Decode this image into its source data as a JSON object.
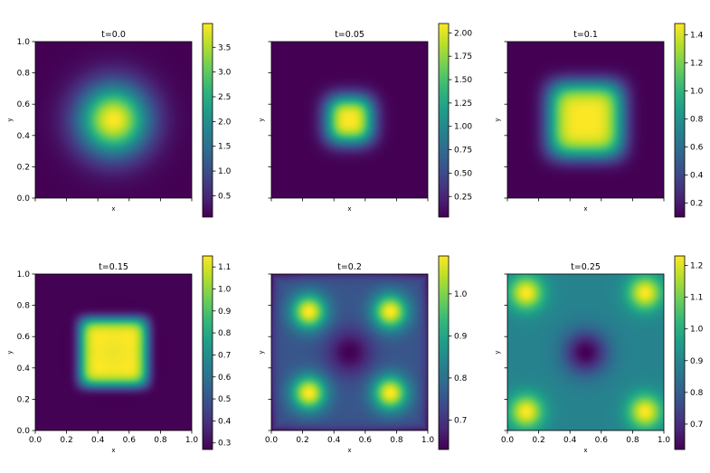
{
  "chart_data": [
    {
      "type": "heatmap",
      "title": "t=0.0",
      "xlabel": "x",
      "ylabel": "y",
      "xlim": [
        0,
        1
      ],
      "ylim": [
        0,
        1
      ],
      "colormap": "viridis",
      "clim": [
        0.07,
        3.98
      ],
      "x_ticks": [
        "",
        "",
        "",
        "",
        "",
        ""
      ],
      "y_ticks": [
        "0.0",
        "0.2",
        "0.4",
        "0.6",
        "0.8",
        "1.0"
      ],
      "colorbar_ticks": [
        "0.5",
        "1.0",
        "1.5",
        "2.0",
        "2.5",
        "3.0",
        "3.5"
      ],
      "colorbar_values": [
        0.5,
        1.0,
        1.5,
        2.0,
        2.5,
        3.0,
        3.5
      ]
    },
    {
      "type": "heatmap",
      "title": "t=0.05",
      "xlabel": "x",
      "ylabel": "y",
      "xlim": [
        0,
        1
      ],
      "ylim": [
        0,
        1
      ],
      "colormap": "viridis",
      "clim": [
        0.03,
        2.1
      ],
      "x_ticks": [
        "",
        "",
        "",
        "",
        "",
        ""
      ],
      "y_ticks": [
        "",
        "",
        "",
        "",
        "",
        ""
      ],
      "colorbar_ticks": [
        "0.25",
        "0.50",
        "0.75",
        "1.00",
        "1.25",
        "1.50",
        "1.75",
        "2.00"
      ],
      "colorbar_values": [
        0.25,
        0.5,
        0.75,
        1.0,
        1.25,
        1.5,
        1.75,
        2.0
      ]
    },
    {
      "type": "heatmap",
      "title": "t=0.1",
      "xlabel": "x",
      "ylabel": "y",
      "xlim": [
        0,
        1
      ],
      "ylim": [
        0,
        1
      ],
      "colormap": "viridis",
      "clim": [
        0.1,
        1.48
      ],
      "x_ticks": [
        "",
        "",
        "",
        "",
        "",
        ""
      ],
      "y_ticks": [
        "",
        "",
        "",
        "",
        "",
        ""
      ],
      "colorbar_ticks": [
        "0.2",
        "0.4",
        "0.6",
        "0.8",
        "1.0",
        "1.2",
        "1.4"
      ],
      "colorbar_values": [
        0.2,
        0.4,
        0.6,
        0.8,
        1.0,
        1.2,
        1.4
      ]
    },
    {
      "type": "heatmap",
      "title": "t=0.15",
      "xlabel": "x",
      "ylabel": "y",
      "xlim": [
        0,
        1
      ],
      "ylim": [
        0,
        1
      ],
      "colormap": "viridis",
      "clim": [
        0.27,
        1.15
      ],
      "x_ticks": [
        "0.0",
        "0.2",
        "0.4",
        "0.6",
        "0.8",
        "1.0"
      ],
      "y_ticks": [
        "0.0",
        "0.2",
        "0.4",
        "0.6",
        "0.8",
        "1.0"
      ],
      "colorbar_ticks": [
        "0.3",
        "0.4",
        "0.5",
        "0.6",
        "0.7",
        "0.8",
        "0.9",
        "1.0",
        "1.1"
      ],
      "colorbar_values": [
        0.3,
        0.4,
        0.5,
        0.6,
        0.7,
        0.8,
        0.9,
        1.0,
        1.1
      ]
    },
    {
      "type": "heatmap",
      "title": "t=0.2",
      "xlabel": "x",
      "ylabel": "y",
      "xlim": [
        0,
        1
      ],
      "ylim": [
        0,
        1
      ],
      "colormap": "viridis",
      "clim": [
        0.63,
        1.09
      ],
      "x_ticks": [
        "0.0",
        "0.2",
        "0.4",
        "0.6",
        "0.8",
        "1.0"
      ],
      "y_ticks": [
        "",
        "",
        "",
        "",
        "",
        ""
      ],
      "colorbar_ticks": [
        "0.7",
        "0.8",
        "0.9",
        "1.0"
      ],
      "colorbar_values": [
        0.7,
        0.8,
        0.9,
        1.0
      ]
    },
    {
      "type": "heatmap",
      "title": "t=0.25",
      "xlabel": "x",
      "ylabel": "y",
      "xlim": [
        0,
        1
      ],
      "ylim": [
        0,
        1
      ],
      "colormap": "viridis",
      "clim": [
        0.62,
        1.23
      ],
      "x_ticks": [
        "0.0",
        "0.2",
        "0.4",
        "0.6",
        "0.8",
        "1.0"
      ],
      "y_ticks": [
        "",
        "",
        "",
        "",
        "",
        ""
      ],
      "colorbar_ticks": [
        "0.7",
        "0.8",
        "0.9",
        "1.0",
        "1.1",
        "1.2"
      ],
      "colorbar_values": [
        0.7,
        0.8,
        0.9,
        1.0,
        1.1,
        1.2
      ]
    }
  ],
  "viridis": [
    "#440154",
    "#482878",
    "#3e4989",
    "#31688e",
    "#26828e",
    "#1f9e89",
    "#35b779",
    "#6ece58",
    "#b5de2b",
    "#fde725"
  ]
}
